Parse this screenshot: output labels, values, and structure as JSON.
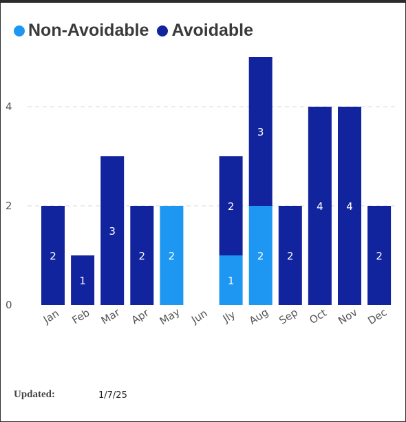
{
  "legend": [
    {
      "label": "Non-Avoidable",
      "color": "#1e97f3"
    },
    {
      "label": "Avoidable",
      "color": "#12239e"
    }
  ],
  "footer": {
    "label": "Updated:",
    "value": "1/7/25"
  },
  "chart_data": {
    "type": "bar",
    "stacked": true,
    "categories": [
      "Jan",
      "Feb",
      "Mar",
      "Apr",
      "May",
      "Jun",
      "Jly",
      "Aug",
      "Sep",
      "Oct",
      "Nov",
      "Dec"
    ],
    "series": [
      {
        "name": "Non-Avoidable",
        "color": "#1e97f3",
        "values": [
          0,
          0,
          0,
          0,
          2,
          0,
          1,
          2,
          0,
          0,
          0,
          0
        ]
      },
      {
        "name": "Avoidable",
        "color": "#12239e",
        "values": [
          2,
          1,
          3,
          2,
          0,
          0,
          2,
          3,
          2,
          4,
          4,
          2
        ]
      }
    ],
    "yticks": [
      0,
      2,
      4
    ],
    "ylim": [
      0,
      5
    ],
    "grid": true,
    "legend_position": "top-left"
  }
}
